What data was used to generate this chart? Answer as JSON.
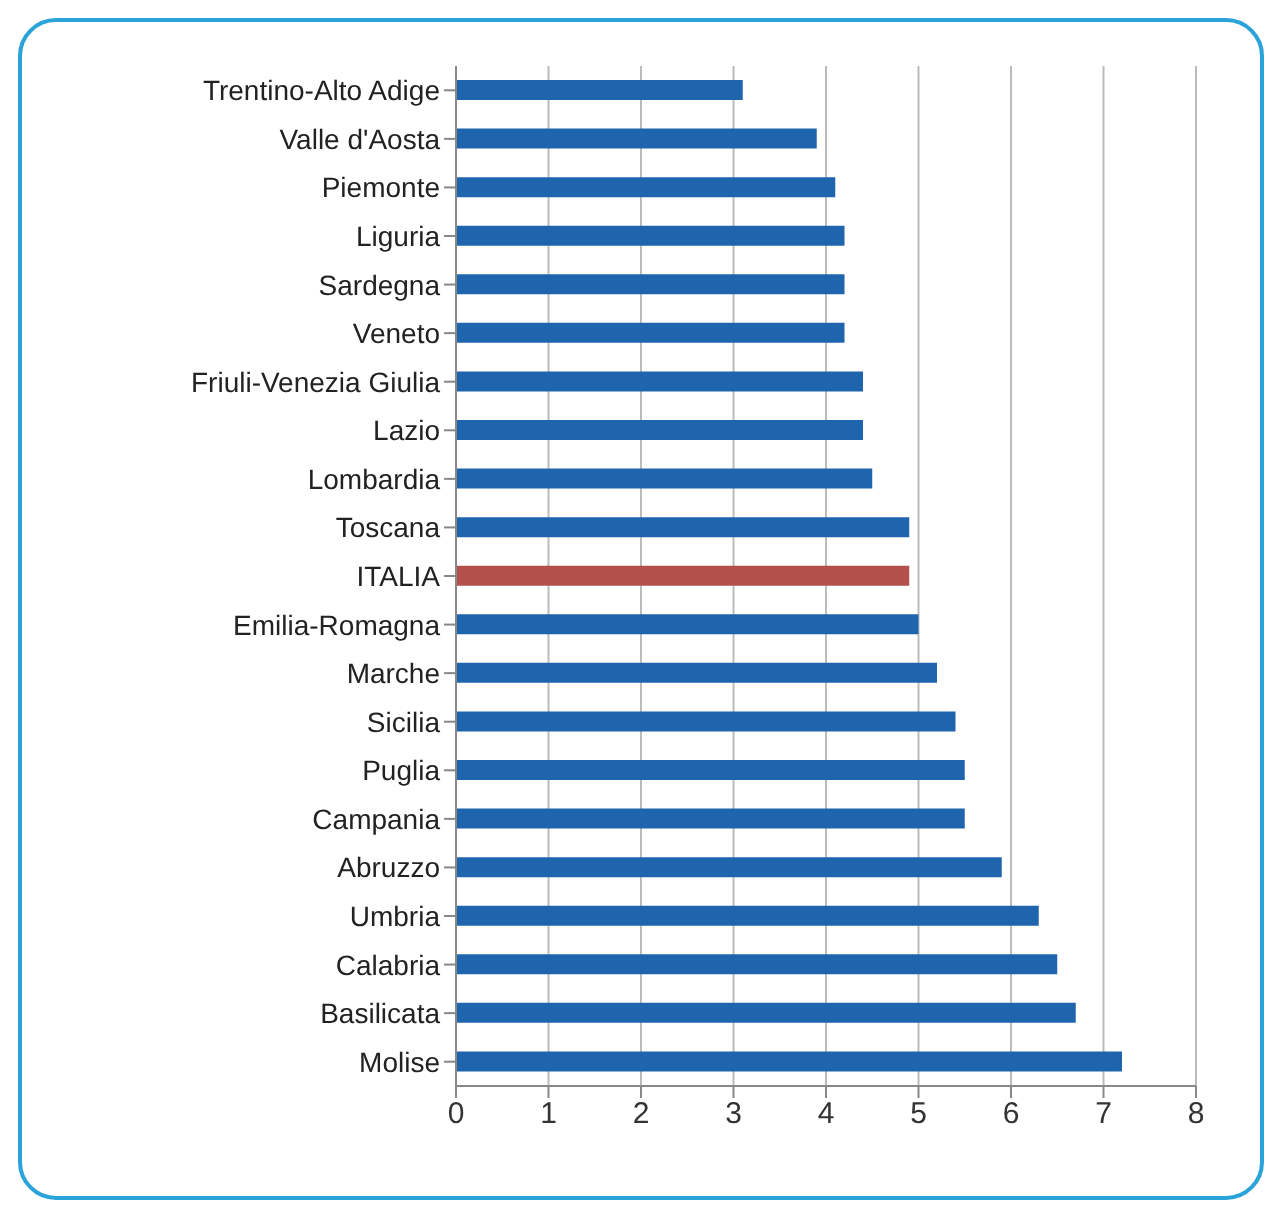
{
  "chart_data": {
    "type": "bar",
    "orientation": "horizontal",
    "categories": [
      "Trentino-Alto Adige",
      "Valle d'Aosta",
      "Piemonte",
      "Liguria",
      "Sardegna",
      "Veneto",
      "Friuli-Venezia Giulia",
      "Lazio",
      "Lombardia",
      "Toscana",
      "ITALIA",
      "Emilia-Romagna",
      "Marche",
      "Sicilia",
      "Puglia",
      "Campania",
      "Abruzzo",
      "Umbria",
      "Calabria",
      "Basilicata",
      "Molise"
    ],
    "values": [
      3.1,
      3.9,
      4.1,
      4.2,
      4.2,
      4.2,
      4.4,
      4.4,
      4.5,
      4.9,
      4.9,
      5.0,
      5.2,
      5.4,
      5.5,
      5.5,
      5.9,
      6.3,
      6.5,
      6.7,
      7.2
    ],
    "colors": [
      "#1f65ad",
      "#1f65ad",
      "#1f65ad",
      "#1f65ad",
      "#1f65ad",
      "#1f65ad",
      "#1f65ad",
      "#1f65ad",
      "#1f65ad",
      "#1f65ad",
      "#b4504c",
      "#1f65ad",
      "#1f65ad",
      "#1f65ad",
      "#1f65ad",
      "#1f65ad",
      "#1f65ad",
      "#1f65ad",
      "#1f65ad",
      "#1f65ad",
      "#1f65ad"
    ],
    "xlim": [
      0,
      8
    ],
    "xticks": [
      0,
      1,
      2,
      3,
      4,
      5,
      6,
      7,
      8
    ],
    "grid": "x"
  }
}
